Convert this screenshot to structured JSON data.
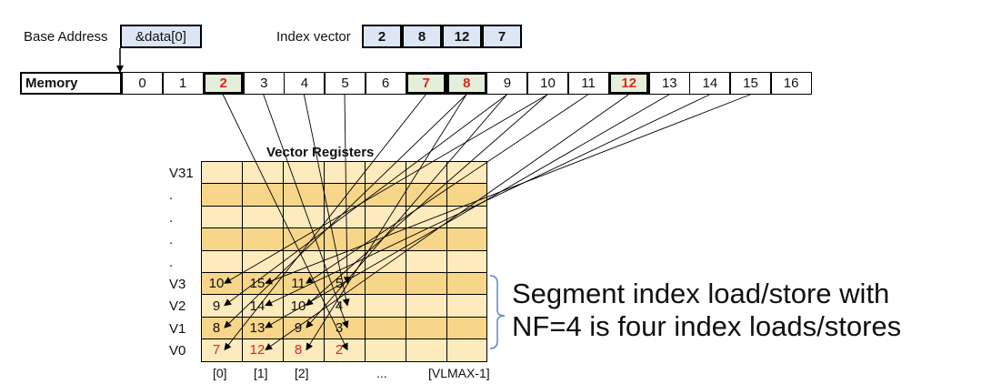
{
  "base_address": {
    "label": "Base Address",
    "value": "&data[0]"
  },
  "index_vector": {
    "label": "Index vector",
    "values": [
      "2",
      "8",
      "12",
      "7"
    ]
  },
  "memory": {
    "label": "Memory",
    "cells": [
      "0",
      "1",
      "2",
      "3",
      "4",
      "5",
      "6",
      "7",
      "8",
      "9",
      "10",
      "11",
      "12",
      "13",
      "14",
      "15",
      "16"
    ],
    "highlighted": [
      "2",
      "7",
      "8",
      "12"
    ],
    "red": [
      "2",
      "7",
      "8",
      "12"
    ]
  },
  "registers": {
    "title": "Vector Registers",
    "rows": [
      "V31",
      ".",
      ".",
      ".",
      ".",
      "V3",
      "V2",
      "V1",
      "V0"
    ],
    "values": {
      "V3": [
        "10",
        "15",
        "11",
        "5"
      ],
      "V2": [
        "9",
        "14",
        "10",
        "4"
      ],
      "V1": [
        "8",
        "13",
        "9",
        "3"
      ],
      "V0": [
        "7",
        "12",
        "8",
        "2"
      ]
    },
    "red_row": "V0",
    "columns": [
      "[0]",
      "[1]",
      "[2]",
      "...",
      "[VLMAX-1]"
    ]
  },
  "caption": {
    "line1": "Segment index load/store with",
    "line2": "NF=4 is four index loads/stores"
  },
  "colors": {
    "dark_cell": "#f7d68a",
    "light_cell": "#fdebbd",
    "highlight": "#e3eedb",
    "red": "#e0261c",
    "index_fill": "#dde6f4",
    "brace": "#5b87c5"
  }
}
